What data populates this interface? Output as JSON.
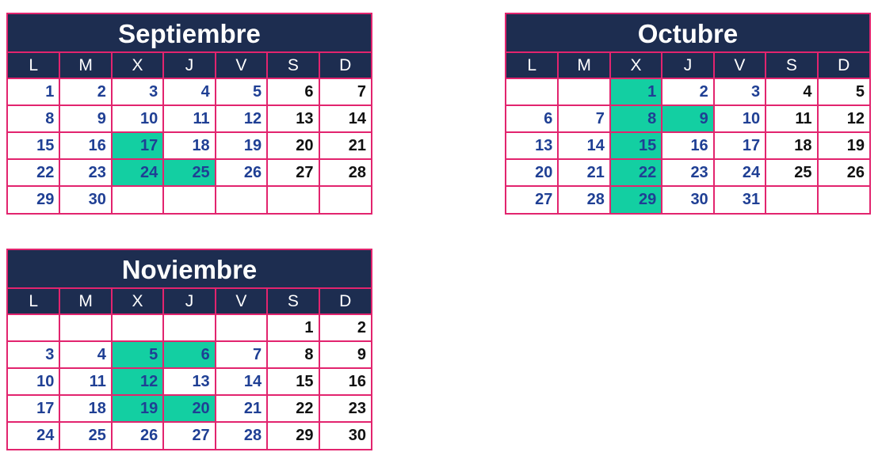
{
  "weekdays": [
    "L",
    "M",
    "X",
    "J",
    "V",
    "S",
    "D"
  ],
  "colors": {
    "header_bg": "#1d2d50",
    "border": "#e2246e",
    "highlight": "#13cfa2",
    "weekday_num": "#1f3f94",
    "weekend_num": "#111111"
  },
  "calendars": [
    {
      "title": "Septiembre",
      "weeks": [
        [
          "1",
          "2",
          "3",
          "4",
          "5",
          "6",
          "7"
        ],
        [
          "8",
          "9",
          "10",
          "11",
          "12",
          "13",
          "14"
        ],
        [
          "15",
          "16",
          "17",
          "18",
          "19",
          "20",
          "21"
        ],
        [
          "22",
          "23",
          "24",
          "25",
          "26",
          "27",
          "28"
        ],
        [
          "29",
          "30",
          "",
          "",
          "",
          "",
          ""
        ]
      ],
      "highlighted": [
        "17",
        "24",
        "25"
      ]
    },
    {
      "title": "Octubre",
      "weeks": [
        [
          "",
          "",
          "1",
          "2",
          "3",
          "4",
          "5"
        ],
        [
          "6",
          "7",
          "8",
          "9",
          "10",
          "11",
          "12"
        ],
        [
          "13",
          "14",
          "15",
          "16",
          "17",
          "18",
          "19"
        ],
        [
          "20",
          "21",
          "22",
          "23",
          "24",
          "25",
          "26"
        ],
        [
          "27",
          "28",
          "29",
          "30",
          "31",
          "",
          ""
        ]
      ],
      "highlighted": [
        "1",
        "8",
        "9",
        "15",
        "22",
        "29"
      ]
    },
    {
      "title": "Noviembre",
      "weeks": [
        [
          "",
          "",
          "",
          "",
          "",
          "1",
          "2"
        ],
        [
          "3",
          "4",
          "5",
          "6",
          "7",
          "8",
          "9"
        ],
        [
          "10",
          "11",
          "12",
          "13",
          "14",
          "15",
          "16"
        ],
        [
          "17",
          "18",
          "19",
          "20",
          "21",
          "22",
          "23"
        ],
        [
          "24",
          "25",
          "26",
          "27",
          "28",
          "29",
          "30"
        ]
      ],
      "highlighted": [
        "5",
        "6",
        "12",
        "19",
        "20"
      ]
    }
  ]
}
